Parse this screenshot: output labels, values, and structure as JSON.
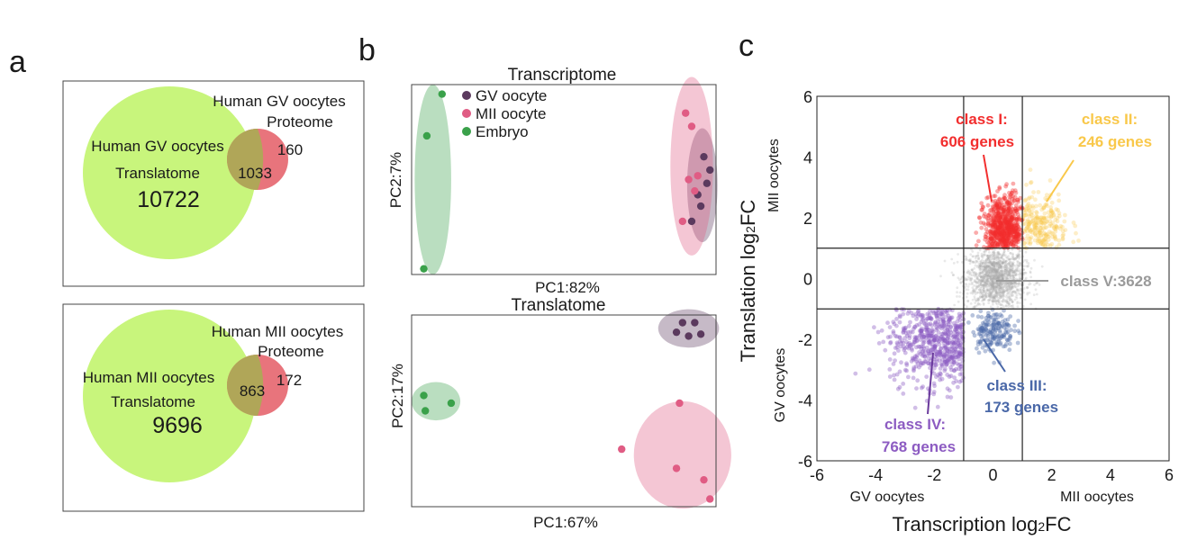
{
  "panels": {
    "a": "a",
    "b": "b",
    "c": "c"
  },
  "chart_data": [
    {
      "type": "venn",
      "panel": "a",
      "sets": [
        {
          "label_line1": "Human GV oocytes",
          "label_line2": "Translatome",
          "count": "10722",
          "color": "#c8f57c"
        },
        {
          "label_line1": "Human GV oocytes",
          "label_line2": "Proteome",
          "count": "160",
          "color": "#e8747c"
        }
      ],
      "overlap": "1033",
      "overlap_color": "#b0a658"
    },
    {
      "type": "venn",
      "panel": "a",
      "sets": [
        {
          "label_line1": "Human MII oocytes",
          "label_line2": "Translatome",
          "count": "9696",
          "color": "#c8f57c"
        },
        {
          "label_line1": "Human MII oocytes",
          "label_line2": "Proteome",
          "count": "172",
          "color": "#e8747c"
        }
      ],
      "overlap": "863",
      "overlap_color": "#b0a658"
    },
    {
      "type": "scatter",
      "panel": "b",
      "title": "Transcriptome",
      "xlabel": "PC1:82%",
      "ylabel": "PC2:7%",
      "xlim": [
        0,
        100
      ],
      "ylim": [
        0,
        100
      ],
      "legend": {
        "position": "top-left",
        "entries": [
          "GV oocyte",
          "MII oocyte",
          "Embryo"
        ]
      },
      "series": [
        {
          "name": "GV oocyte",
          "color": "#5b3a5e",
          "x": [
            96,
            98,
            97,
            94,
            95,
            92
          ],
          "y": [
            62,
            55,
            48,
            42,
            36,
            28
          ]
        },
        {
          "name": "MII oocyte",
          "color": "#e05c84",
          "x": [
            90,
            92,
            94,
            91,
            93,
            89
          ],
          "y": [
            85,
            78,
            52,
            50,
            44,
            28
          ]
        },
        {
          "name": "Embryo",
          "color": "#3aa14a",
          "x": [
            10,
            5,
            4
          ],
          "y": [
            95,
            73,
            3
          ]
        }
      ],
      "ellipses": [
        {
          "color": "#5b3a5e",
          "cx": 95.5,
          "cy": 47,
          "rx": 5,
          "ry": 30
        },
        {
          "color": "#e05c84",
          "cx": 92,
          "cy": 57,
          "rx": 7,
          "ry": 47
        },
        {
          "color": "#3aa14a",
          "cx": 7,
          "cy": 50,
          "rx": 6,
          "ry": 50
        }
      ]
    },
    {
      "type": "scatter",
      "panel": "b",
      "title": "Translatome",
      "xlabel": "PC1:67%",
      "ylabel": "PC2:17%",
      "xlim": [
        0,
        100
      ],
      "ylim": [
        0,
        100
      ],
      "series": [
        {
          "name": "GV oocyte",
          "color": "#5b3a5e",
          "x": [
            87,
            89,
            91,
            93,
            95
          ],
          "y": [
            91,
            96,
            89,
            96,
            90
          ]
        },
        {
          "name": "MII oocyte",
          "color": "#e05c84",
          "x": [
            88,
            69,
            87,
            96,
            98
          ],
          "y": [
            54,
            30,
            20,
            14,
            4
          ]
        },
        {
          "name": "Embryo",
          "color": "#3aa14a",
          "x": [
            4,
            4.5,
            13
          ],
          "y": [
            58,
            50,
            54
          ]
        }
      ],
      "ellipses": [
        {
          "color": "#5b3a5e",
          "cx": 91,
          "cy": 93,
          "rx": 10,
          "ry": 10
        },
        {
          "color": "#e05c84",
          "cx": 89,
          "cy": 27,
          "rx": 16,
          "ry": 28
        },
        {
          "color": "#3aa14a",
          "cx": 8,
          "cy": 55,
          "rx": 8,
          "ry": 10
        }
      ]
    },
    {
      "type": "scatter",
      "panel": "c",
      "xlabel": "Transcription log",
      "xlabel_sub": "2",
      "xlabel_end": "FC",
      "ylabel": "Translation log",
      "ylabel_sub": "2",
      "ylabel_end": "FC",
      "xlim": [
        -6,
        6
      ],
      "ylim": [
        -6,
        6
      ],
      "xticks": [
        "-6",
        "-4",
        "-2",
        "0",
        "2",
        "4",
        "6"
      ],
      "yticks": [
        "-6",
        "-4",
        "-2",
        "0",
        "2",
        "4",
        "6"
      ],
      "x_side_labels": [
        "GV oocytes",
        "MII oocytes"
      ],
      "y_side_labels": [
        "GV oocytes",
        "MII oocytes"
      ],
      "thresholds": [
        -1,
        1
      ],
      "classes": [
        {
          "name": "class I:",
          "detail": "606 genes",
          "color": "#f22e2e",
          "count": 606,
          "center": [
            0.4,
            1.6
          ],
          "spread": [
            0.35,
            0.55
          ]
        },
        {
          "name": "class II:",
          "detail": "246 genes",
          "color": "#f9c84a",
          "count": 246,
          "center": [
            1.5,
            1.6
          ],
          "spread": [
            0.55,
            0.6
          ]
        },
        {
          "name": "class III:",
          "detail": "173 genes",
          "color": "#4a68a8",
          "count": 173,
          "center": [
            0.0,
            -1.7
          ],
          "spread": [
            0.35,
            0.35
          ]
        },
        {
          "name": "class IV:",
          "detail": "768 genes",
          "color": "#8d5cc2",
          "count": 768,
          "center": [
            -1.7,
            -2.0
          ],
          "spread": [
            0.9,
            0.75
          ]
        },
        {
          "name": "class V:3628",
          "detail": "",
          "color": "#a8a8a8",
          "count": 3628,
          "center": [
            0.1,
            0.0
          ],
          "spread": [
            0.5,
            0.5
          ]
        }
      ]
    }
  ]
}
